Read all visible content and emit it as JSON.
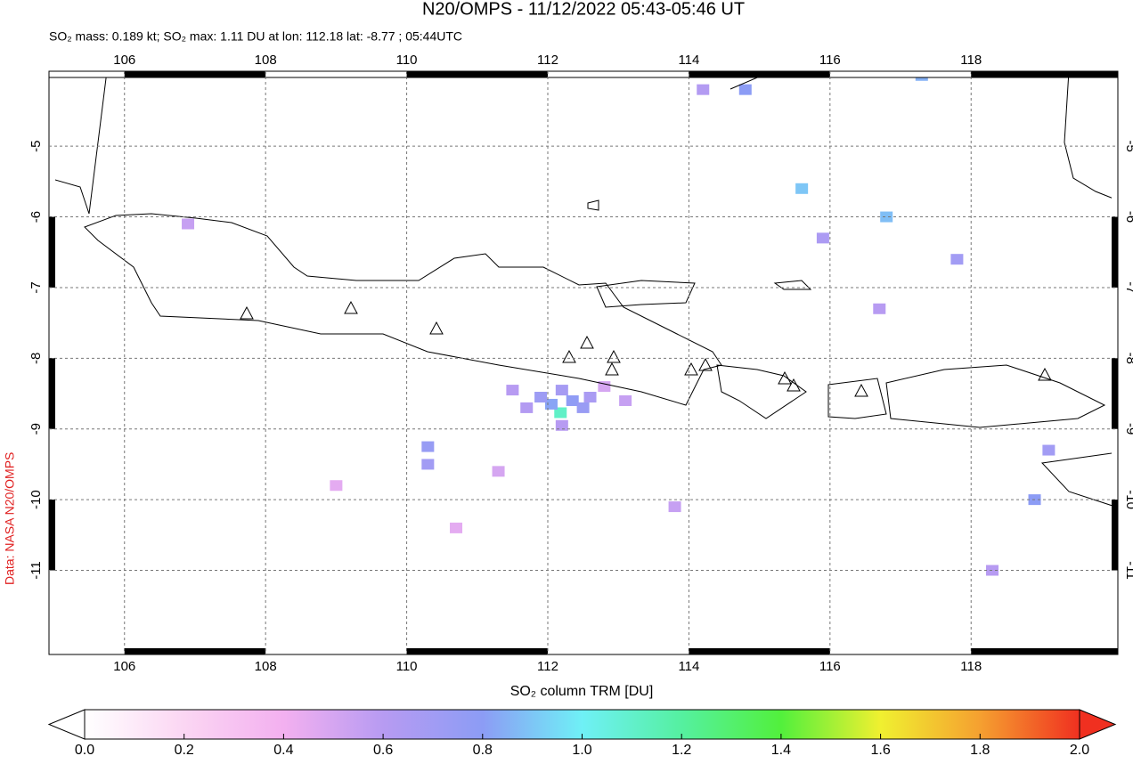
{
  "chart_data": {
    "type": "map",
    "title": "N20/OMPS - 11/12/2022 05:43-05:46 UT",
    "subtitle": "SO₂ mass: 0.189 kt; SO₂ max: 1.11 DU at lon: 112.18 lat: -8.77 ; 05:44UTC",
    "credit": "Data: NASA N20/OMPS",
    "xlim": [
      104.93,
      120.08
    ],
    "ylim": [
      -12.19,
      -3.94
    ],
    "xticks": [
      106,
      108,
      110,
      112,
      114,
      116,
      118
    ],
    "yticks": [
      -5,
      -6,
      -7,
      -8,
      -9,
      -10,
      -11
    ],
    "grid": true,
    "pixels": {
      "lon": [
        112.18,
        112.05,
        112.35,
        111.9,
        112.5,
        111.7,
        112.2,
        111.5,
        112.6,
        110.3,
        110.3,
        112.2,
        114.8,
        115.6,
        116.8,
        117.8,
        119.1,
        113.1,
        111.3,
        115.9,
        116.7,
        118.3,
        113.8,
        114.2,
        117.3,
        106.9,
        109.0,
        112.8,
        110.7,
        118.9
      ],
      "lat": [
        -8.77,
        -8.65,
        -8.6,
        -8.55,
        -8.7,
        -8.7,
        -8.45,
        -8.45,
        -8.55,
        -9.25,
        -9.5,
        -8.95,
        -4.2,
        -5.6,
        -6.0,
        -6.6,
        -9.3,
        -8.6,
        -9.6,
        -6.3,
        -7.3,
        -11.0,
        -10.1,
        -4.2,
        -4.0,
        -6.1,
        -9.8,
        -8.4,
        -10.4,
        -10.0
      ],
      "values": [
        1.11,
        0.82,
        0.78,
        0.72,
        0.74,
        0.62,
        0.68,
        0.6,
        0.66,
        0.75,
        0.7,
        0.6,
        0.8,
        0.9,
        0.88,
        0.7,
        0.7,
        0.55,
        0.5,
        0.65,
        0.6,
        0.6,
        0.55,
        0.62,
        0.85,
        0.55,
        0.45,
        0.5,
        0.45,
        0.8
      ]
    },
    "colorbar": {
      "label": "SO₂ column TRM [DU]",
      "lim": [
        0,
        2
      ],
      "ticks": [
        {
          "value": 0,
          "label": "0.0"
        },
        {
          "value": 0.2,
          "label": "0.2"
        },
        {
          "value": 0.4,
          "label": "0.4"
        },
        {
          "value": 0.6,
          "label": "0.6"
        },
        {
          "value": 0.8,
          "label": "0.8"
        },
        {
          "value": 1,
          "label": "1.0"
        },
        {
          "value": 1.2,
          "label": "1.2"
        },
        {
          "value": 1.4,
          "label": "1.4"
        },
        {
          "value": 1.6,
          "label": "1.6"
        },
        {
          "value": 1.8,
          "label": "1.8"
        },
        {
          "value": 2,
          "label": "2.0"
        }
      ]
    }
  }
}
